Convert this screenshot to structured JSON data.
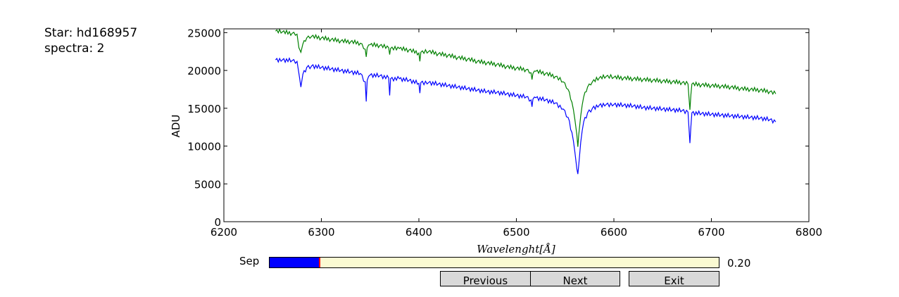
{
  "info": {
    "star_line": "Star: hd168957",
    "spectra_line": "spectra: 2"
  },
  "chart_data": {
    "type": "line",
    "title": "",
    "xlabel": "Wavelenght[Å]",
    "ylabel": "ADU",
    "xlim": [
      6200,
      6800
    ],
    "ylim": [
      0,
      25500
    ],
    "xticks": [
      6200,
      6300,
      6400,
      6500,
      6600,
      6700,
      6800
    ],
    "yticks": [
      0,
      5000,
      10000,
      15000,
      20000,
      25000
    ],
    "grid": false,
    "series": [
      {
        "color": "#008000",
        "x": [
          6253,
          6260,
          6270,
          6275,
          6277,
          6279,
          6281,
          6285,
          6290,
          6300,
          6310,
          6320,
          6330,
          6340,
          6345,
          6346,
          6347,
          6350,
          6360,
          6369,
          6370,
          6371,
          6380,
          6390,
          6400,
          6401,
          6402,
          6410,
          6420,
          6430,
          6440,
          6450,
          6460,
          6470,
          6480,
          6490,
          6500,
          6510,
          6515,
          6516,
          6517,
          6520,
          6530,
          6540,
          6548,
          6553,
          6557,
          6560,
          6562,
          6563,
          6564,
          6566,
          6569,
          6573,
          6578,
          6585,
          6592,
          6600,
          6610,
          6620,
          6630,
          6640,
          6650,
          6660,
          6670,
          6676,
          6677,
          6678,
          6679,
          6680,
          6690,
          6700,
          6710,
          6720,
          6730,
          6740,
          6750,
          6760,
          6766
        ],
        "values": [
          25200,
          25100,
          24900,
          24800,
          23000,
          22400,
          23500,
          24300,
          24500,
          24300,
          24100,
          23900,
          23800,
          23600,
          22800,
          21800,
          23000,
          23400,
          23300,
          23000,
          22100,
          22900,
          22900,
          22700,
          22300,
          21200,
          22400,
          22500,
          22200,
          22000,
          21700,
          21500,
          21200,
          21000,
          20800,
          20500,
          20300,
          20100,
          19700,
          18800,
          19600,
          19900,
          19600,
          19200,
          18500,
          17500,
          15800,
          13500,
          11500,
          9900,
          11500,
          14000,
          16500,
          17800,
          18500,
          19000,
          19200,
          19100,
          19000,
          18900,
          18800,
          18700,
          18600,
          18500,
          18400,
          18200,
          16500,
          14800,
          16800,
          18200,
          18100,
          18000,
          17900,
          17800,
          17600,
          17500,
          17400,
          17200,
          16900
        ]
      },
      {
        "color": "#0000ff",
        "x": [
          6253,
          6260,
          6270,
          6275,
          6277,
          6279,
          6281,
          6285,
          6290,
          6300,
          6310,
          6320,
          6330,
          6340,
          6345,
          6346,
          6347,
          6350,
          6360,
          6369,
          6370,
          6371,
          6380,
          6390,
          6400,
          6401,
          6402,
          6410,
          6420,
          6430,
          6440,
          6450,
          6460,
          6470,
          6480,
          6490,
          6500,
          6510,
          6515,
          6516,
          6517,
          6520,
          6530,
          6540,
          6548,
          6553,
          6557,
          6560,
          6562,
          6563,
          6564,
          6566,
          6569,
          6573,
          6578,
          6585,
          6592,
          6600,
          6610,
          6620,
          6630,
          6640,
          6650,
          6660,
          6670,
          6676,
          6677,
          6678,
          6679,
          6680,
          6690,
          6700,
          6710,
          6720,
          6730,
          6740,
          6750,
          6760,
          6766
        ],
        "values": [
          21400,
          21400,
          21300,
          21200,
          19600,
          17800,
          19500,
          20400,
          20600,
          20400,
          20200,
          20000,
          19800,
          19600,
          18500,
          15900,
          18700,
          19400,
          19300,
          19000,
          16700,
          18900,
          18900,
          18700,
          18300,
          17000,
          18400,
          18400,
          18200,
          18000,
          17800,
          17600,
          17400,
          17200,
          17100,
          16900,
          16700,
          16500,
          16100,
          15200,
          16200,
          16400,
          16100,
          15700,
          14900,
          13800,
          11800,
          9200,
          7000,
          6300,
          7500,
          10500,
          13200,
          14400,
          15000,
          15400,
          15500,
          15500,
          15400,
          15300,
          15100,
          15000,
          14900,
          14800,
          14700,
          14500,
          12500,
          10400,
          12600,
          14400,
          14300,
          14200,
          14100,
          14000,
          13900,
          13800,
          13700,
          13500,
          13200
        ]
      }
    ]
  },
  "slider": {
    "label": "Sep",
    "min": 0,
    "max": 1,
    "value": 0.2,
    "value_text": "0.20",
    "fill_color": "#0000ff",
    "track_color": "#fafad2",
    "handle_color": "#ff0000"
  },
  "buttons": {
    "previous": "Previous",
    "next": "Next",
    "exit": "Exit"
  }
}
